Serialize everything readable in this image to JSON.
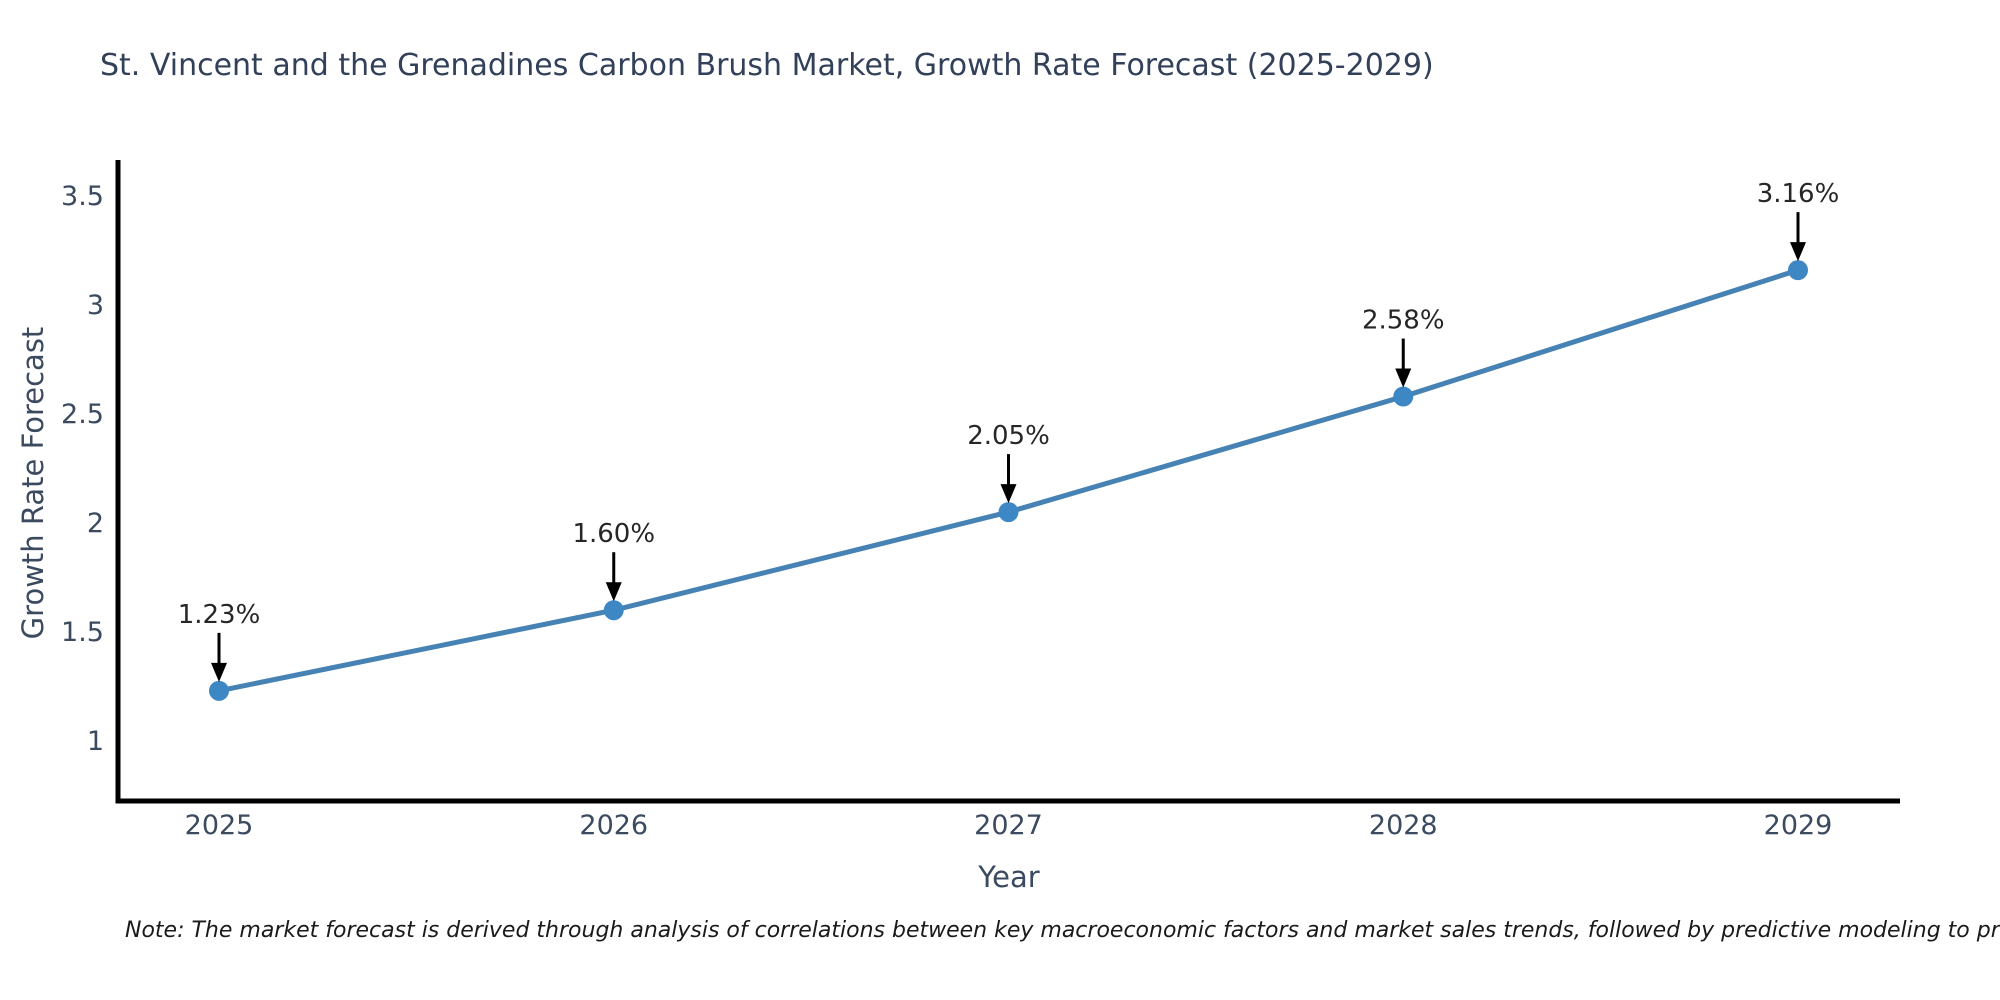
{
  "title": "St. Vincent and the Grenadines Carbon Brush Market, Growth Rate Forecast (2025-2029)",
  "axis": {
    "xlabel": "Year",
    "ylabel": "Growth Rate Forecast"
  },
  "note": "Note: The market forecast is derived through analysis of correlations between key macroeconomic factors and market sales trends, followed by predictive modeling to project future sales",
  "colors": {
    "line": "#4682b4",
    "marker": "#3d87c4",
    "axis_line": "#000000",
    "tick_text": "#3b4a5f",
    "title_text": "#32405a",
    "annotation_text": "#262626",
    "arrow": "#000000",
    "note_text": "#1a1a1a"
  },
  "chart_data": {
    "type": "line",
    "title": "St. Vincent and the Grenadines Carbon Brush Market, Growth Rate Forecast (2025-2029)",
    "xlabel": "Year",
    "ylabel": "Growth Rate Forecast",
    "x": [
      2025,
      2026,
      2027,
      2028,
      2029
    ],
    "series": [
      {
        "name": "Growth Rate Forecast",
        "values": [
          1.23,
          1.6,
          2.05,
          2.58,
          3.16
        ]
      }
    ],
    "point_labels": [
      "1.23%",
      "1.60%",
      "2.05%",
      "2.58%",
      "3.16%"
    ],
    "yticks": [
      1,
      1.5,
      2,
      2.5,
      3,
      3.5
    ],
    "ylim": [
      0.72,
      3.66
    ],
    "grid": false,
    "legend_position": "none",
    "annotation_style": "value label above point with downward black arrow",
    "marker_style": "filled circle"
  }
}
